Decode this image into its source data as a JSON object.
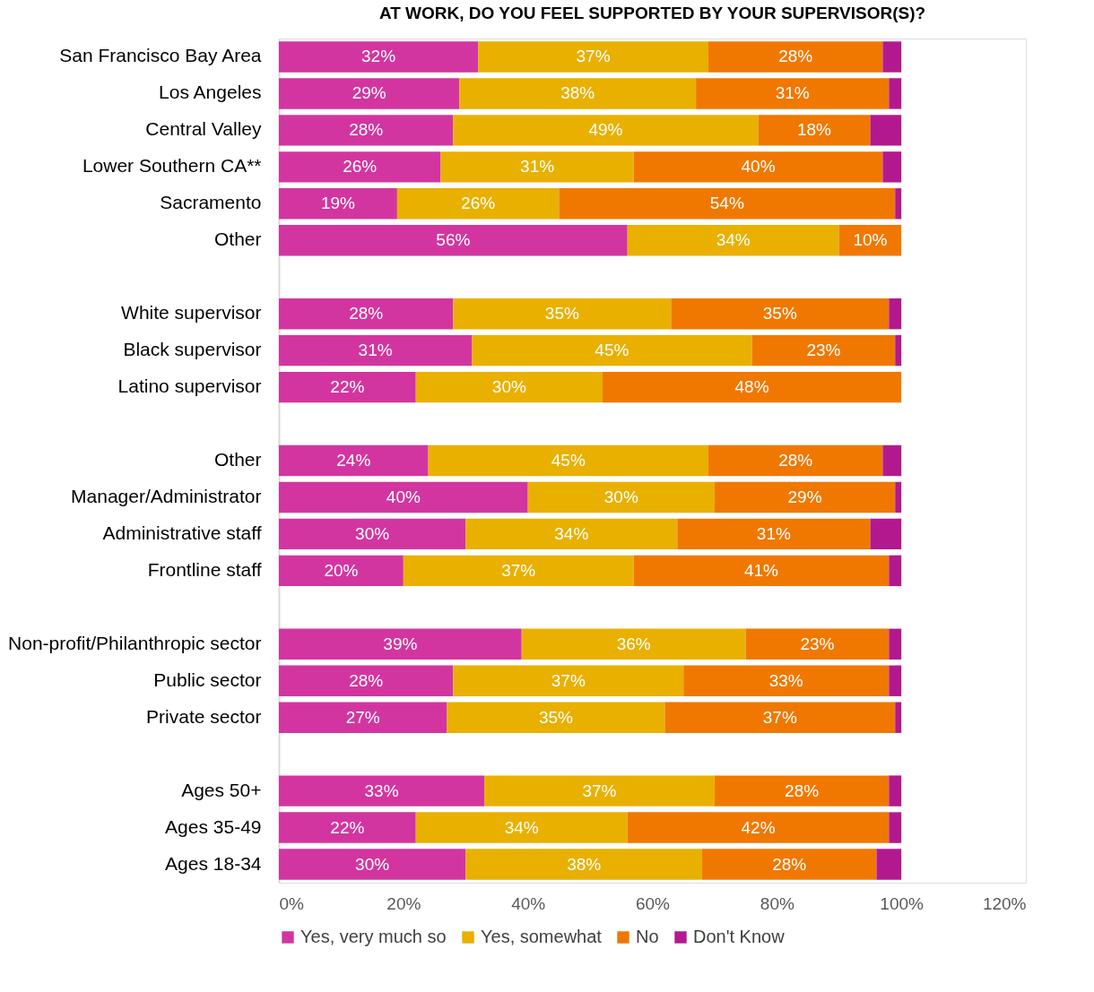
{
  "chart_data": {
    "type": "bar",
    "orientation": "horizontal",
    "stacked": true,
    "title": "AT WORK, DO YOU FEEL SUPPORTED BY YOUR SUPERVISOR(S)?",
    "categories": [
      "San Francisco Bay Area",
      "Los Angeles",
      "Central Valley",
      "Lower Southern CA**",
      "Sacramento",
      "Other",
      null,
      "White supervisor",
      "Black supervisor",
      "Latino supervisor",
      null,
      "Other",
      "Manager/Administrator",
      "Administrative staff",
      "Frontline staff",
      null,
      "Non-profit/Philanthropic sector",
      "Public sector",
      "Private sector",
      null,
      "Ages 50+",
      "Ages 35-49",
      "Ages 18-34"
    ],
    "series": [
      {
        "name": "Yes, very much so",
        "color": "#d335a0",
        "values": [
          32,
          29,
          28,
          26,
          19,
          56,
          null,
          28,
          31,
          22,
          null,
          24,
          40,
          30,
          20,
          null,
          39,
          28,
          27,
          null,
          33,
          22,
          30
        ],
        "value_labels": [
          "32%",
          "29%",
          "28%",
          "26%",
          "19%",
          "56%",
          null,
          "28%",
          "31%",
          "22%",
          null,
          "24%",
          "40%",
          "30%",
          "20%",
          null,
          "39%",
          "28%",
          "27%",
          null,
          "33%",
          "22%",
          "30%"
        ]
      },
      {
        "name": "Yes, somewhat",
        "color": "#e9b000",
        "values": [
          37,
          38,
          49,
          31,
          26,
          34,
          null,
          35,
          45,
          30,
          null,
          45,
          30,
          34,
          37,
          null,
          36,
          37,
          35,
          null,
          37,
          34,
          38
        ],
        "value_labels": [
          "37%",
          "38%",
          "49%",
          "31%",
          "26%",
          "34%",
          null,
          "35%",
          "45%",
          "30%",
          null,
          "45%",
          "30%",
          "34%",
          "37%",
          null,
          "36%",
          "37%",
          "35%",
          null,
          "37%",
          "34%",
          "38%"
        ]
      },
      {
        "name": "No",
        "color": "#f07800",
        "values": [
          28,
          31,
          18,
          40,
          54,
          10,
          null,
          35,
          23,
          48,
          null,
          28,
          29,
          31,
          41,
          null,
          23,
          33,
          37,
          null,
          28,
          42,
          28
        ],
        "value_labels": [
          "28%",
          "31%",
          "18%",
          "40%",
          "54%",
          "10%",
          null,
          "35%",
          "23%",
          "48%",
          null,
          "28%",
          "29%",
          "31%",
          "41%",
          null,
          "23%",
          "33%",
          "37%",
          null,
          "28%",
          "42%",
          "28%"
        ]
      },
      {
        "name": "Don't Know",
        "color": "#b3198e",
        "values": [
          3,
          2,
          5,
          3,
          1,
          null,
          null,
          2,
          1,
          null,
          null,
          3,
          1,
          5,
          2,
          null,
          2,
          2,
          1,
          null,
          2,
          2,
          4
        ]
      }
    ],
    "xlim": [
      0,
      120
    ],
    "xticks": [
      {
        "value": 0,
        "label": "0%"
      },
      {
        "value": 20,
        "label": "20%"
      },
      {
        "value": 40,
        "label": "40%"
      },
      {
        "value": 60,
        "label": "60%"
      },
      {
        "value": 80,
        "label": "80%"
      },
      {
        "value": 100,
        "label": "100%"
      },
      {
        "value": 120,
        "label": "120%"
      }
    ],
    "grid": false,
    "legend": "bottom"
  }
}
